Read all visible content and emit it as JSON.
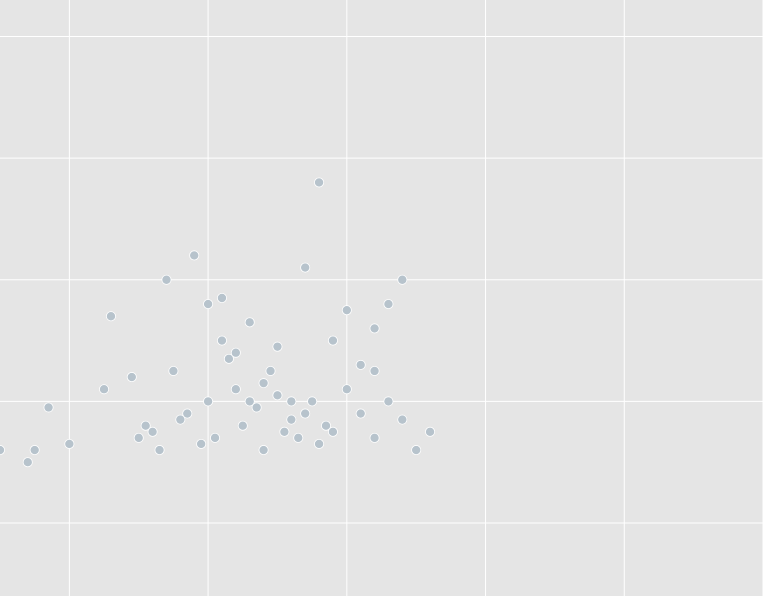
{
  "chart_data": {
    "type": "scatter",
    "title": "",
    "xlabel": "",
    "ylabel": "",
    "xlim": [
      -10.0,
      100.0
    ],
    "ylim": [
      -12.0,
      86.0
    ],
    "grid": true,
    "grid_x": [
      0,
      20,
      40,
      60,
      80,
      100
    ],
    "grid_y": [
      0,
      20,
      40,
      60,
      80
    ],
    "legend": "none",
    "series": [
      {
        "color": "#b7c3cc",
        "marker": "circle",
        "points": [
          [
            -10,
            12
          ],
          [
            -6,
            10
          ],
          [
            -5,
            12
          ],
          [
            -3,
            19
          ],
          [
            0,
            13
          ],
          [
            5,
            22
          ],
          [
            6,
            34
          ],
          [
            9,
            24
          ],
          [
            10,
            14
          ],
          [
            11,
            16
          ],
          [
            12,
            15
          ],
          [
            13,
            12
          ],
          [
            15,
            25
          ],
          [
            16,
            17
          ],
          [
            17,
            18
          ],
          [
            19,
            13
          ],
          [
            20,
            20
          ],
          [
            21,
            14
          ],
          [
            22,
            30
          ],
          [
            23,
            27
          ],
          [
            24,
            28
          ],
          [
            25,
            16
          ],
          [
            26,
            20
          ],
          [
            27,
            19
          ],
          [
            28,
            12
          ],
          [
            29,
            25
          ],
          [
            30,
            21
          ],
          [
            31,
            15
          ],
          [
            32,
            17
          ],
          [
            33,
            14
          ],
          [
            34,
            18
          ],
          [
            35,
            20
          ],
          [
            36,
            13
          ],
          [
            37,
            16
          ],
          [
            38,
            15
          ],
          [
            40,
            22
          ],
          [
            42,
            18
          ],
          [
            44,
            14
          ],
          [
            46,
            20
          ],
          [
            48,
            17
          ],
          [
            50,
            12
          ],
          [
            52,
            15
          ],
          [
            14,
            40
          ],
          [
            18,
            44
          ],
          [
            22,
            37
          ],
          [
            26,
            33
          ],
          [
            30,
            29
          ],
          [
            34,
            42
          ],
          [
            38,
            30
          ],
          [
            42,
            26
          ],
          [
            44,
            32
          ],
          [
            46,
            36
          ],
          [
            48,
            40
          ],
          [
            36,
            56
          ],
          [
            20,
            36
          ],
          [
            24,
            22
          ],
          [
            28,
            23
          ],
          [
            32,
            20
          ],
          [
            40,
            35
          ],
          [
            44,
            25
          ]
        ],
        "count_note": ""
      }
    ]
  }
}
